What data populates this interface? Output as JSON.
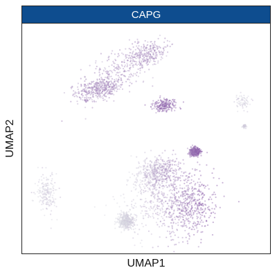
{
  "chart_data": {
    "type": "scatter",
    "title": "CAPG",
    "xlabel": "UMAP1",
    "ylabel": "UMAP2",
    "grid": false,
    "axis_ticks": false,
    "colors": {
      "header_bg": "#0e4d8f",
      "header_text": "#ffffff",
      "low_expression": "#d9d9e2",
      "high_expression": "#8a5ba8"
    },
    "clusters": [
      {
        "name": "upper-left-band",
        "expression": "medium-high"
      },
      {
        "name": "small-left-fragment",
        "expression": "medium"
      },
      {
        "name": "center-island",
        "expression": "high"
      },
      {
        "name": "far-right-small",
        "expression": "low"
      },
      {
        "name": "left-bottom-small",
        "expression": "low"
      },
      {
        "name": "lower-main-mass",
        "expression": "mixed"
      }
    ]
  }
}
